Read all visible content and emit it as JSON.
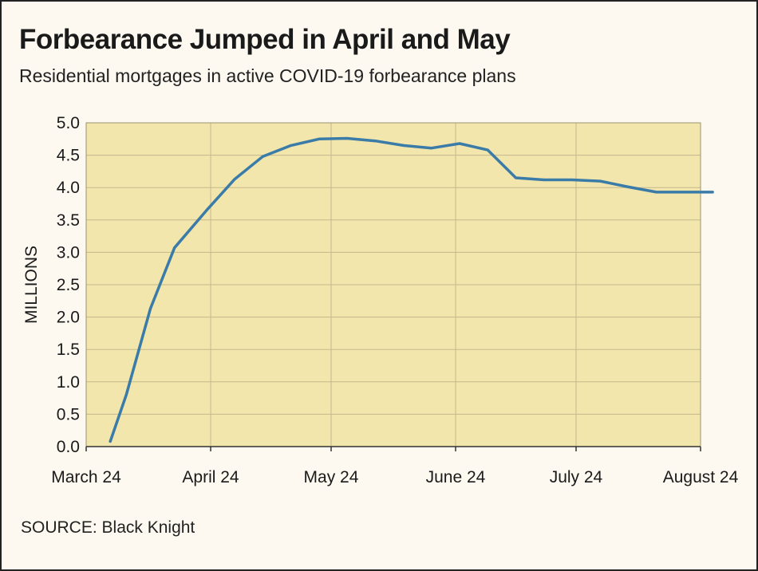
{
  "chart_data": {
    "type": "line",
    "title": "Forbearance Jumped in April and May",
    "subtitle": "Residential mortgages in active COVID-19 forbearance plans",
    "ylabel": "MILLIONS",
    "xlabel": "",
    "ylim": [
      0,
      5.0
    ],
    "yticks": [
      "0.0",
      "0.5",
      "1.0",
      "1.5",
      "2.0",
      "2.5",
      "3.0",
      "3.5",
      "4.0",
      "4.5",
      "5.0"
    ],
    "xticks": [
      "March 24",
      "April 24",
      "May 24",
      "June 24",
      "July 24",
      "August 24"
    ],
    "xticks_days": [
      0,
      31,
      61,
      92,
      122,
      153
    ],
    "grid": true,
    "series": [
      {
        "name": "",
        "color": "#3a7ba8",
        "points": [
          {
            "x": "2020-03-30",
            "y": 0.08
          },
          {
            "x": "2020-04-03",
            "y": 0.8
          },
          {
            "x": "2020-04-09",
            "y": 2.13
          },
          {
            "x": "2020-04-15",
            "y": 3.07
          },
          {
            "x": "2020-04-23",
            "y": 3.65
          },
          {
            "x": "2020-04-30",
            "y": 4.13
          },
          {
            "x": "2020-05-07",
            "y": 4.48
          },
          {
            "x": "2020-05-14",
            "y": 4.65
          },
          {
            "x": "2020-05-21",
            "y": 4.75
          },
          {
            "x": "2020-05-28",
            "y": 4.76
          },
          {
            "x": "2020-06-04",
            "y": 4.72
          },
          {
            "x": "2020-06-11",
            "y": 4.65
          },
          {
            "x": "2020-06-18",
            "y": 4.61
          },
          {
            "x": "2020-06-25",
            "y": 4.68
          },
          {
            "x": "2020-07-02",
            "y": 4.58
          },
          {
            "x": "2020-07-09",
            "y": 4.15
          },
          {
            "x": "2020-07-16",
            "y": 4.12
          },
          {
            "x": "2020-07-23",
            "y": 4.12
          },
          {
            "x": "2020-07-30",
            "y": 4.1
          },
          {
            "x": "2020-08-06",
            "y": 4.01
          },
          {
            "x": "2020-08-13",
            "y": 3.93
          },
          {
            "x": "2020-08-20",
            "y": 3.93
          },
          {
            "x": "2020-08-27",
            "y": 3.93
          }
        ]
      }
    ],
    "colors": {
      "plot_background": "#f2e6ad",
      "gridline": "#c4b98c"
    }
  },
  "source": {
    "label": "SOURCE:",
    "text": "Black Knight"
  }
}
